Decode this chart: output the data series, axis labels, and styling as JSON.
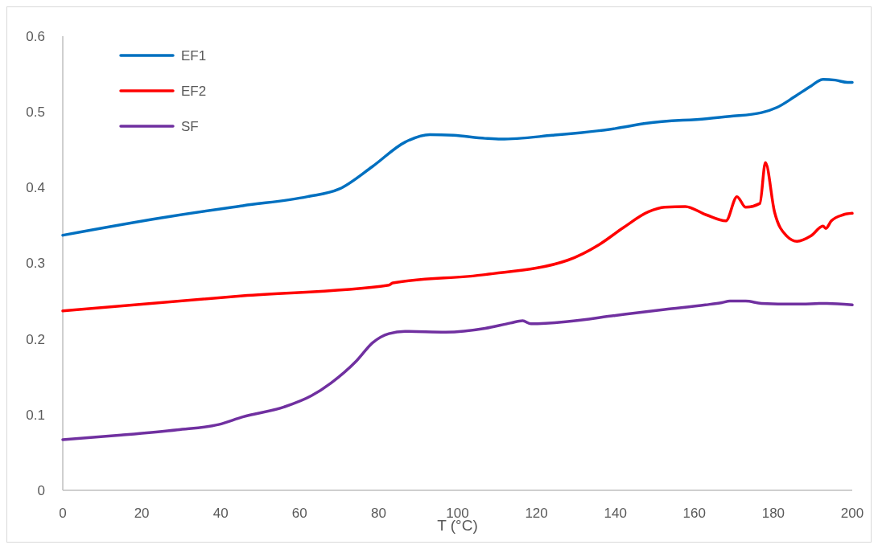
{
  "chart_data": {
    "type": "line",
    "xlabel": "T (°C)",
    "xlim": [
      0,
      200
    ],
    "xticks": [
      0,
      20,
      40,
      60,
      80,
      100,
      120,
      140,
      160,
      180,
      200
    ],
    "ylim": [
      0,
      0.6
    ],
    "yticks": [
      0,
      0.1,
      0.2,
      0.3,
      0.4,
      0.5,
      0.6
    ],
    "grid": false,
    "legend": "top left",
    "marker": "none",
    "line_style": "solid",
    "series": [
      {
        "name": "EF1",
        "color": "#0070c0",
        "x": [
          0,
          25,
          45.6,
          62,
          70,
          78.5,
          86.7,
          93,
          99,
          107,
          111,
          124,
          140,
          148,
          163,
          169,
          177,
          181,
          185.4,
          189.5,
          192.6,
          195.7,
          198.8,
          200
        ],
        "values": [
          0.337,
          0.36,
          0.376,
          0.388,
          0.398,
          0.428,
          0.46,
          0.47,
          0.469,
          0.465,
          0.464,
          0.469,
          0.478,
          0.485,
          0.491,
          0.494,
          0.499,
          0.506,
          0.52,
          0.534,
          0.543,
          0.542,
          0.539,
          0.539
        ]
      },
      {
        "name": "EF2",
        "color": "#ff0000",
        "x": [
          0,
          45.6,
          82.6,
          83.6,
          107,
          127.9,
          136,
          142,
          148.4,
          152.5,
          157.7,
          163,
          168,
          170.8,
          173,
          176.6,
          178,
          180.3,
          183.4,
          186,
          189.5,
          192.6,
          193.3,
          194.7,
          197.7,
          200
        ],
        "values": [
          0.237,
          0.257,
          0.271,
          0.274,
          0.285,
          0.304,
          0.325,
          0.347,
          0.368,
          0.374,
          0.375,
          0.364,
          0.356,
          0.388,
          0.374,
          0.379,
          0.433,
          0.368,
          0.336,
          0.329,
          0.336,
          0.349,
          0.346,
          0.356,
          0.364,
          0.366
        ]
      },
      {
        "name": "SF",
        "color": "#7030a0",
        "x": [
          0,
          14.8,
          29,
          39.5,
          45.6,
          56,
          63,
          68,
          74.4,
          78.5,
          82.6,
          86.7,
          97,
          107,
          113.4,
          116.5,
          118.6,
          127.9,
          140,
          152.5,
          162.8,
          167,
          169,
          173,
          177,
          185.4,
          193.6,
          200
        ],
        "values": [
          0.067,
          0.073,
          0.08,
          0.087,
          0.097,
          0.11,
          0.125,
          0.142,
          0.171,
          0.195,
          0.207,
          0.21,
          0.209,
          0.214,
          0.221,
          0.224,
          0.22,
          0.223,
          0.231,
          0.239,
          0.245,
          0.248,
          0.25,
          0.25,
          0.247,
          0.246,
          0.247,
          0.245
        ]
      }
    ]
  }
}
